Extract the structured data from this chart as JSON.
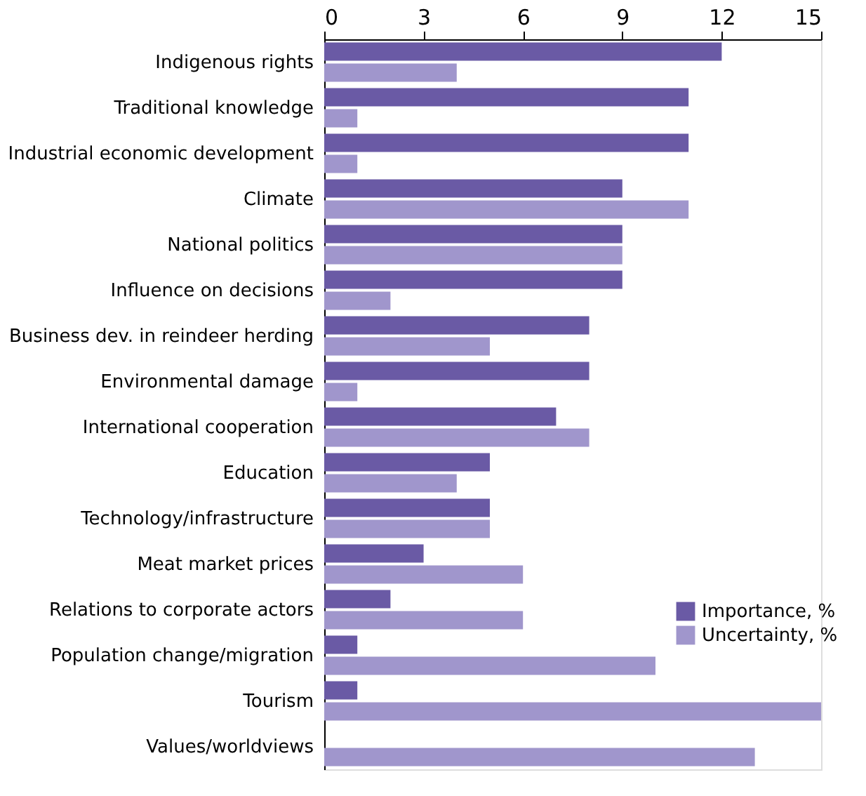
{
  "chart_data": {
    "type": "bar",
    "orientation": "horizontal",
    "categories": [
      "Indigenous rights",
      "Traditional knowledge",
      "Industrial economic development",
      "Climate",
      "National politics",
      "Influence on decisions",
      "Business dev. in reindeer herding",
      "Environmental damage",
      "International cooperation",
      "Education",
      "Technology/infrastructure",
      "Meat market prices",
      "Relations to corporate actors",
      "Population change/migration",
      "Tourism",
      "Values/worldviews"
    ],
    "series": [
      {
        "name": "Importance, %",
        "color": "#6a5aa5",
        "values": [
          12,
          11,
          11,
          9,
          9,
          9,
          8,
          8,
          7,
          5,
          5,
          3,
          2,
          1,
          1,
          0
        ]
      },
      {
        "name": "Uncertainty, %",
        "color": "#a096cc",
        "values": [
          4,
          1,
          1,
          11,
          9,
          2,
          5,
          1,
          8,
          4,
          5,
          6,
          6,
          10,
          15,
          13
        ]
      }
    ],
    "xlim": [
      0,
      15
    ],
    "xticks": [
      0,
      3,
      6,
      9,
      12,
      15
    ],
    "grid": false,
    "legend": "bottom right"
  }
}
